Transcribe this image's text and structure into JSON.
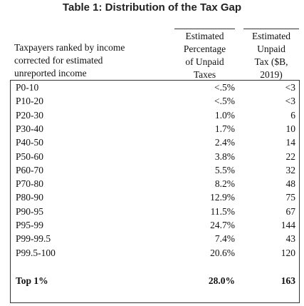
{
  "title": "Table 1: Distribution of the Tax Gap",
  "table": {
    "header": [
      [
        "Taxpayers ranked by income",
        "corrected for estimated",
        "unreported income"
      ],
      [
        "Estimated",
        "Percentage",
        "of Unpaid",
        "Taxes"
      ],
      [
        "Estimated",
        "Unpaid",
        "Tax ($B,",
        "2019)"
      ]
    ],
    "rows": [
      [
        "P0-10",
        "<.5%",
        "<3"
      ],
      [
        "P10-20",
        "<.5%",
        "<3"
      ],
      [
        "P20-30",
        "1.0%",
        "6"
      ],
      [
        "P30-40",
        "1.7%",
        "10"
      ],
      [
        "P40-50",
        "2.4%",
        "14"
      ],
      [
        "P50-60",
        "3.8%",
        "22"
      ],
      [
        "P60-70",
        "5.5%",
        "32"
      ],
      [
        "P70-80",
        "8.2%",
        "48"
      ],
      [
        "P80-90",
        "12.9%",
        "75"
      ],
      [
        "P90-95",
        "11.5%",
        "67"
      ],
      [
        "P95-99",
        "24.7%",
        "144"
      ],
      [
        "P99-99.5",
        "7.4%",
        "43"
      ],
      [
        "P99.5-100",
        "20.6%",
        "120"
      ]
    ],
    "total": [
      "Top 1%",
      "28.0%",
      "163"
    ]
  }
}
